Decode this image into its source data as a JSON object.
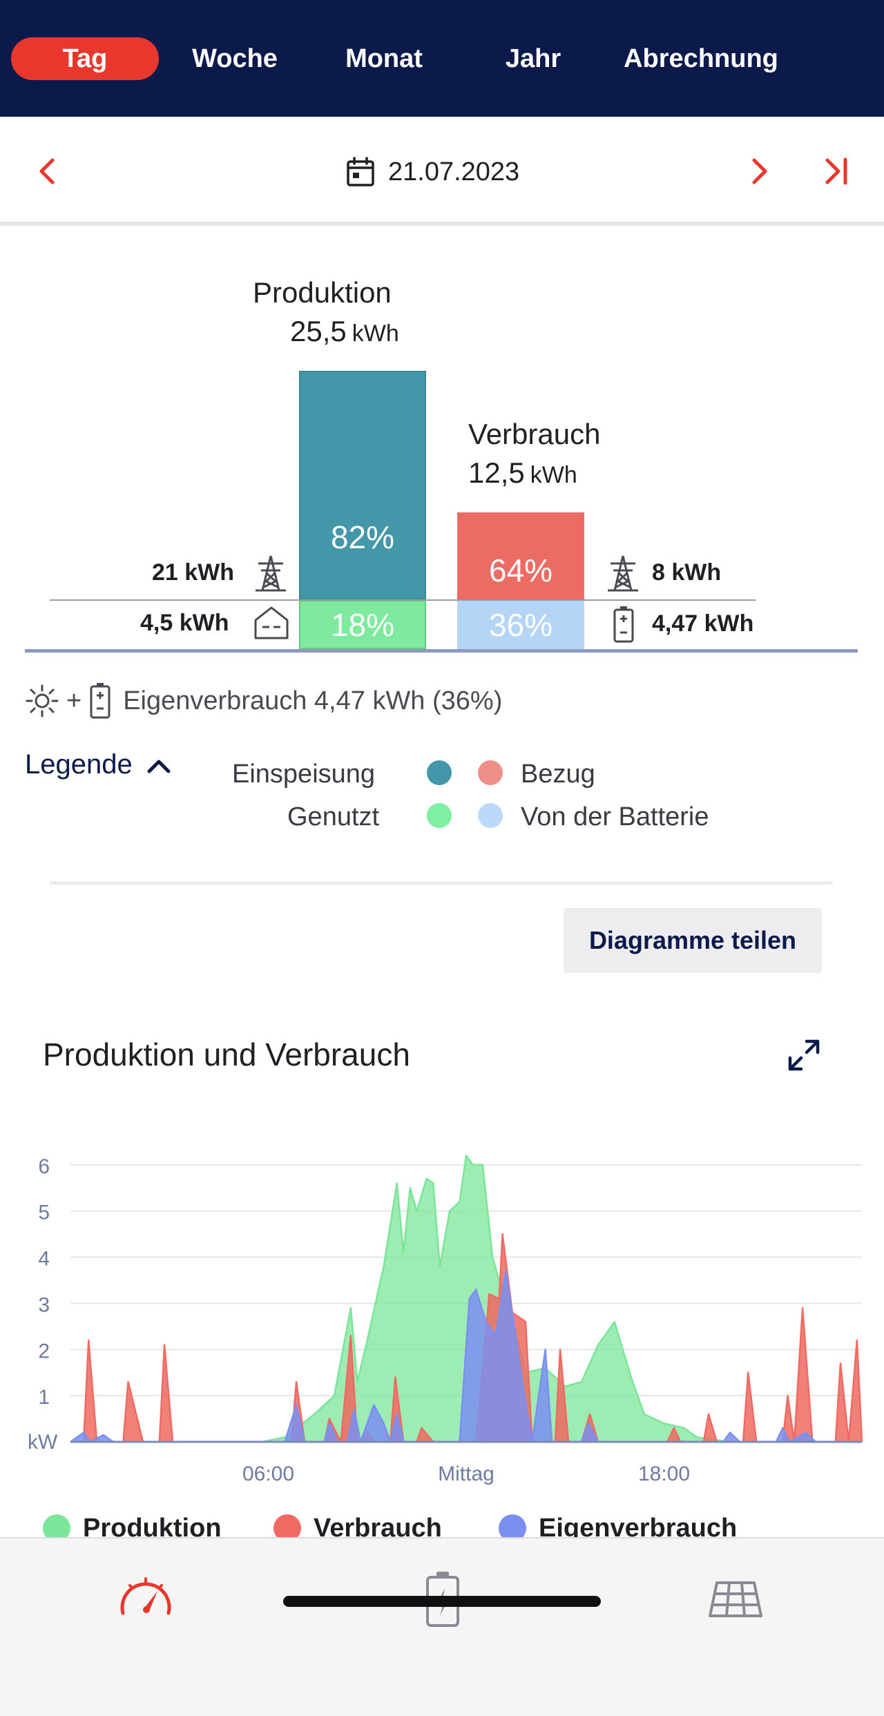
{
  "tabs": [
    {
      "label": "Tag",
      "active": true
    },
    {
      "label": "Woche",
      "active": false
    },
    {
      "label": "Monat",
      "active": false
    },
    {
      "label": "Jahr",
      "active": false
    },
    {
      "label": "Abrechnung",
      "active": false
    }
  ],
  "date_bar": {
    "date": "21.07.2023",
    "prev_icon": "chevron-left-icon",
    "next_icon": "chevron-right-icon",
    "last_icon": "skip-to-end-icon",
    "calendar_icon": "calendar-icon"
  },
  "summary": {
    "production": {
      "title": "Produktion",
      "value": "25,5",
      "unit": "kWh",
      "feed_in_percent": "82%",
      "used_percent": "18%",
      "feed_in_value": "21 kWh",
      "used_value": "4,5 kWh"
    },
    "consumption": {
      "title": "Verbrauch",
      "value": "12,5",
      "unit": "kWh",
      "grid_percent": "64%",
      "battery_percent": "36%",
      "grid_value": "8 kWh",
      "battery_value": "4,47 kWh"
    },
    "self_consumption": {
      "plus": "+",
      "text": "Eigenverbrauch 4,47 kWh (36%)"
    }
  },
  "legend": {
    "toggle_label": "Legende",
    "row1_left": "Einspeisung",
    "row1_right": "Bezug",
    "row2_left": "Genutzt",
    "row2_right": "Von der Batterie"
  },
  "share_button": "Diagramme teilen",
  "chart_section_title": "Produktion und Verbrauch",
  "colors": {
    "nav_bg": "#0b1a4a",
    "accent_red": "#e8372c",
    "feed_in": "#4497a8",
    "used": "#7eea9e",
    "grid_draw": "#ec6b63",
    "battery": "#b5d5f7",
    "production_series": "#7be59a",
    "consumption_series": "#ee6a62",
    "self_consumption_series": "#7b8ff0"
  },
  "chart_data": {
    "type": "area",
    "ylabel": "kW",
    "y_ticks": [
      1,
      2,
      3,
      4,
      5,
      6
    ],
    "ylim": [
      0,
      6.4
    ],
    "xlim": [
      0,
      24
    ],
    "x_ticks": [
      {
        "x": 6,
        "label": "06:00"
      },
      {
        "x": 12,
        "label": "Mittag"
      },
      {
        "x": 18,
        "label": "18:00"
      }
    ],
    "grid": true,
    "legend_position": "bottom",
    "series": [
      {
        "name": "Produktion",
        "color": "#7be59a",
        "points": [
          [
            0,
            0
          ],
          [
            5.8,
            0
          ],
          [
            6.5,
            0.1
          ],
          [
            7.4,
            0.6
          ],
          [
            8.0,
            1.0
          ],
          [
            8.5,
            2.9
          ],
          [
            8.7,
            1.3
          ],
          [
            9.0,
            2.2
          ],
          [
            9.5,
            3.8
          ],
          [
            9.9,
            5.6
          ],
          [
            10.1,
            4.1
          ],
          [
            10.3,
            5.5
          ],
          [
            10.5,
            5.0
          ],
          [
            10.8,
            5.7
          ],
          [
            11.0,
            5.6
          ],
          [
            11.2,
            3.8
          ],
          [
            11.5,
            5.0
          ],
          [
            11.8,
            5.2
          ],
          [
            12.0,
            6.2
          ],
          [
            12.2,
            6.0
          ],
          [
            12.5,
            6.0
          ],
          [
            12.8,
            4.0
          ],
          [
            13.0,
            3.5
          ],
          [
            13.3,
            3.0
          ],
          [
            13.8,
            1.5
          ],
          [
            14.4,
            1.6
          ],
          [
            15.0,
            1.2
          ],
          [
            15.5,
            1.3
          ],
          [
            16.0,
            2.1
          ],
          [
            16.5,
            2.6
          ],
          [
            17.0,
            1.4
          ],
          [
            17.4,
            0.6
          ],
          [
            18.0,
            0.4
          ],
          [
            18.6,
            0.3
          ],
          [
            19.0,
            0.1
          ],
          [
            20.0,
            0
          ],
          [
            24,
            0
          ]
        ]
      },
      {
        "name": "Verbrauch",
        "color": "#ee6a62",
        "points": [
          [
            0,
            0
          ],
          [
            0.4,
            0
          ],
          [
            0.55,
            2.2
          ],
          [
            0.8,
            0
          ],
          [
            1.6,
            0
          ],
          [
            1.75,
            1.3
          ],
          [
            2.2,
            0
          ],
          [
            2.7,
            0
          ],
          [
            2.85,
            2.1
          ],
          [
            3.1,
            0
          ],
          [
            6.7,
            0
          ],
          [
            6.85,
            1.3
          ],
          [
            7.1,
            0
          ],
          [
            7.7,
            0
          ],
          [
            7.85,
            0.5
          ],
          [
            8.2,
            0
          ],
          [
            8.5,
            2.3
          ],
          [
            8.7,
            0
          ],
          [
            9.0,
            0.2
          ],
          [
            9.2,
            0
          ],
          [
            9.7,
            0
          ],
          [
            9.85,
            1.4
          ],
          [
            10.1,
            0
          ],
          [
            10.5,
            0
          ],
          [
            10.65,
            0.3
          ],
          [
            11.0,
            0
          ],
          [
            12.3,
            0
          ],
          [
            12.7,
            3.2
          ],
          [
            13.0,
            3.1
          ],
          [
            13.1,
            4.5
          ],
          [
            13.4,
            2.8
          ],
          [
            13.8,
            2.6
          ],
          [
            14.0,
            0
          ],
          [
            14.7,
            0
          ],
          [
            14.85,
            2.0
          ],
          [
            15.1,
            0
          ],
          [
            15.5,
            0
          ],
          [
            15.75,
            0.6
          ],
          [
            16.0,
            0
          ],
          [
            18.1,
            0
          ],
          [
            18.3,
            0.3
          ],
          [
            18.5,
            0
          ],
          [
            19.2,
            0
          ],
          [
            19.35,
            0.6
          ],
          [
            19.6,
            0
          ],
          [
            20.4,
            0
          ],
          [
            20.55,
            1.5
          ],
          [
            20.8,
            0
          ],
          [
            21.6,
            0
          ],
          [
            21.75,
            1.0
          ],
          [
            21.95,
            0
          ],
          [
            22.2,
            2.9
          ],
          [
            22.5,
            0
          ],
          [
            23.2,
            0
          ],
          [
            23.35,
            1.7
          ],
          [
            23.6,
            0
          ],
          [
            23.85,
            2.2
          ],
          [
            24,
            0
          ]
        ]
      },
      {
        "name": "Eigenverbrauch",
        "color": "#7b8ff0",
        "points": [
          [
            0,
            0
          ],
          [
            0.4,
            0.2
          ],
          [
            0.6,
            0
          ],
          [
            1.0,
            0.15
          ],
          [
            1.3,
            0
          ],
          [
            6.5,
            0
          ],
          [
            6.85,
            0.8
          ],
          [
            7.1,
            0
          ],
          [
            7.7,
            0
          ],
          [
            7.85,
            0.4
          ],
          [
            8.1,
            0
          ],
          [
            8.4,
            0
          ],
          [
            8.6,
            0.7
          ],
          [
            8.8,
            0
          ],
          [
            9.2,
            0.8
          ],
          [
            9.5,
            0.4
          ],
          [
            9.7,
            0
          ],
          [
            9.9,
            0.6
          ],
          [
            10.1,
            0
          ],
          [
            11.8,
            0
          ],
          [
            12.1,
            3.1
          ],
          [
            12.3,
            3.3
          ],
          [
            12.6,
            2.6
          ],
          [
            12.9,
            2.3
          ],
          [
            13.2,
            3.7
          ],
          [
            13.5,
            2.3
          ],
          [
            13.7,
            1.3
          ],
          [
            14.0,
            0
          ],
          [
            14.4,
            2.0
          ],
          [
            14.6,
            0
          ],
          [
            15.5,
            0
          ],
          [
            15.7,
            0.4
          ],
          [
            16.0,
            0
          ],
          [
            19.8,
            0
          ],
          [
            20.0,
            0.2
          ],
          [
            20.3,
            0
          ],
          [
            21.4,
            0
          ],
          [
            21.6,
            0.3
          ],
          [
            21.8,
            0
          ],
          [
            22.3,
            0.2
          ],
          [
            22.6,
            0
          ],
          [
            24,
            0
          ]
        ]
      }
    ]
  },
  "bottom_nav": [
    {
      "icon": "speedometer-icon",
      "active": true
    },
    {
      "icon": "battery-icon",
      "active": false
    },
    {
      "icon": "solar-panel-icon",
      "active": false
    }
  ]
}
